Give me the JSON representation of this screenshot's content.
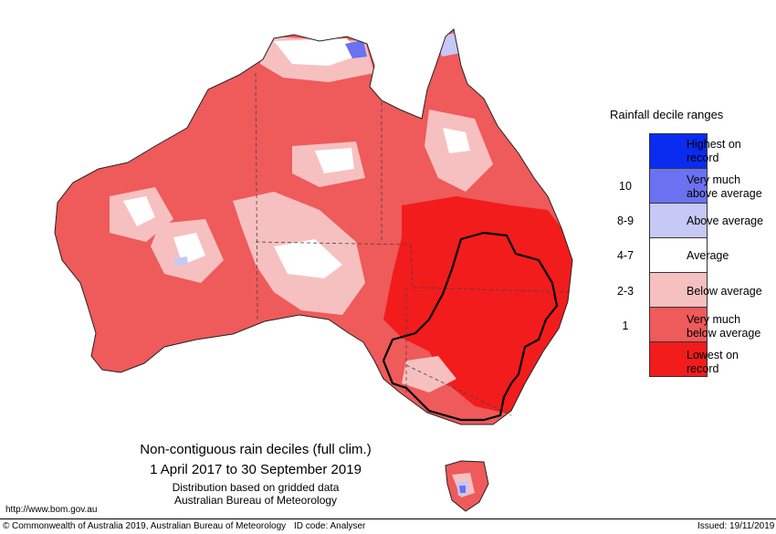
{
  "legend": {
    "title": "Rainfall decile ranges",
    "items": [
      {
        "label_lines": [
          "Highest on",
          "record"
        ],
        "decile": "",
        "color": "#0a2cf0"
      },
      {
        "label_lines": [
          "Very much",
          "above average"
        ],
        "decile": "10",
        "color": "#6a72f2"
      },
      {
        "label_lines": [
          "Above average"
        ],
        "decile": "8-9",
        "color": "#c6c8f5"
      },
      {
        "label_lines": [
          "Average"
        ],
        "decile": "4-7",
        "color": "#ffffff"
      },
      {
        "label_lines": [
          "Below average"
        ],
        "decile": "2-3",
        "color": "#f7c0c0"
      },
      {
        "label_lines": [
          "Very much",
          "below average"
        ],
        "decile": "1",
        "color": "#ef5a5a"
      },
      {
        "label_lines": [
          "Lowest on",
          "record"
        ],
        "decile": "",
        "color": "#f21c1c"
      }
    ]
  },
  "caption": {
    "line1": "Non-contiguous rain deciles (full clim.)",
    "line2": "1 April 2017 to 30 September 2019",
    "line3": "Distribution based on gridded data",
    "line4": "Australian Bureau of Meteorology"
  },
  "url": "http://www.bom.gov.au",
  "footer": {
    "copyright_symbol": "©",
    "copyright": "Commonwealth of Australia 2019, Australian Bureau of Meteorology",
    "id_code": "ID code: Analyser",
    "issued": "Issued: 19/11/2019"
  },
  "colors": {
    "lowest": "#f21c1c",
    "very_much_below": "#ef5a5a",
    "below": "#f7c0c0",
    "average": "#ffffff",
    "above": "#c6c8f5",
    "very_much_above": "#6a72f2",
    "highest": "#0a2cf0"
  }
}
